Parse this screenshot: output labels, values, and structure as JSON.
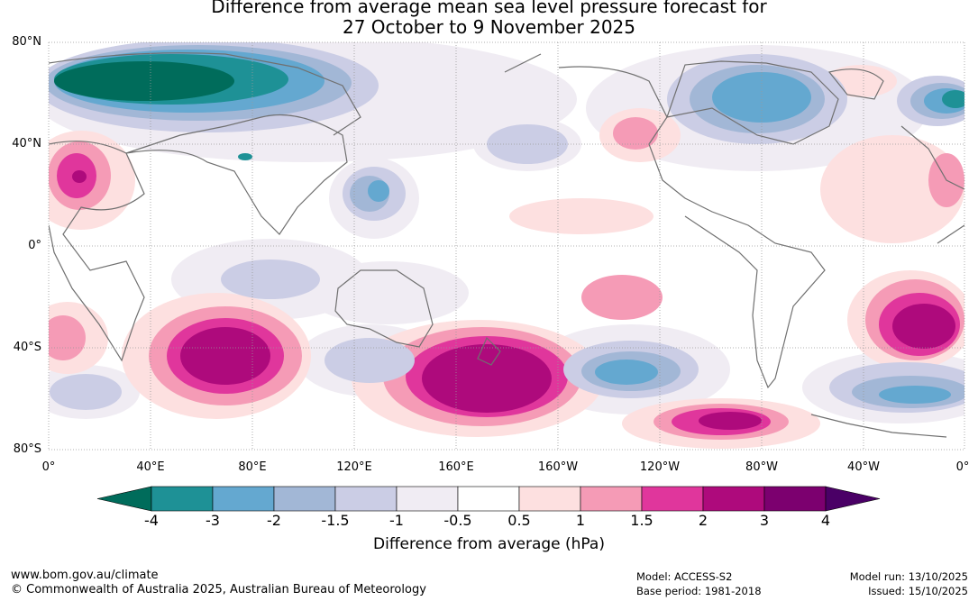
{
  "title": {
    "line1": "Difference from average mean sea level pressure forecast for",
    "line2": "27 October to 9 November 2025"
  },
  "lat_labels": [
    "80°N",
    "40°N",
    "0°",
    "40°S",
    "80°S"
  ],
  "lon_labels": [
    "0°",
    "40°E",
    "80°E",
    "120°E",
    "160°E",
    "160°W",
    "120°W",
    "80°W",
    "40°W",
    "0°"
  ],
  "colorbar": {
    "title": "Difference from average (hPa)",
    "ticks": [
      "-4",
      "-3",
      "-2",
      "-1.5",
      "-1",
      "-0.5",
      "0.5",
      "1",
      "1.5",
      "2",
      "3",
      "4"
    ],
    "colors": [
      "#006c5b",
      "#1e9196",
      "#64a8d0",
      "#a2b7d6",
      "#cbcde5",
      "#f0ecf3",
      "#ffffff",
      "#fde0e0",
      "#f59bb6",
      "#e0369c",
      "#ae0a7c",
      "#7c006f",
      "#4a0066"
    ]
  },
  "footer": {
    "website": "www.bom.gov.au/climate",
    "copyright": "© Commonwealth of Australia 2025, Australian Bureau of Meteorology",
    "model": "Model: ACCESS-S2",
    "base_period": "Base period: 1981-2018",
    "model_run": "Model run: 13/10/2025",
    "issued": "Issued: 15/10/2025"
  }
}
